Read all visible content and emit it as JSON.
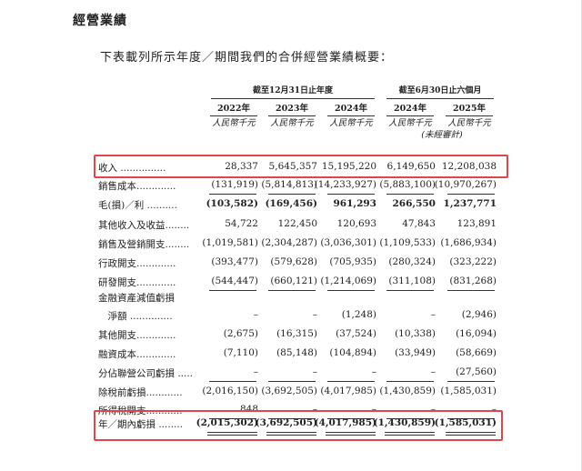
{
  "heading": "經營業績",
  "intro": "下表載列所示年度／期間我們的合併經營業績概要：",
  "header": {
    "group1": "截至12月31日止年度",
    "group2": "截至6月30日止六個月",
    "years": [
      "2022年",
      "2023年",
      "2024年",
      "2024年",
      "2025年"
    ],
    "unit": "人民幣千元",
    "unaudited": "(未經審計)"
  },
  "rows": [
    {
      "label": "收入 ...............",
      "values": [
        "28,337",
        "5,645,357",
        "15,195,220",
        "6,149,650",
        "12,208,038"
      ]
    },
    {
      "label": "銷售成本.............",
      "values": [
        "(131,919)",
        "(5,814,813)",
        "(14,233,927)",
        "(5,883,100)",
        "(10,970,267)"
      ]
    },
    {
      "label": "毛(損)／利 ..........",
      "values": [
        "(103,582)",
        "(169,456)",
        "961,293",
        "266,550",
        "1,237,771"
      ]
    },
    {
      "label": "其他收入及收益........",
      "values": [
        "54,722",
        "122,450",
        "120,693",
        "47,843",
        "123,891"
      ]
    },
    {
      "label": "銷售及營銷開支........",
      "values": [
        "(1,019,581)",
        "(2,304,287)",
        "(3,036,301)",
        "(1,109,533)",
        "(1,686,934)"
      ]
    },
    {
      "label": "行政開支.............",
      "values": [
        "(393,477)",
        "(579,628)",
        "(705,935)",
        "(280,324)",
        "(323,222)"
      ]
    },
    {
      "label": "研發開支.............",
      "values": [
        "(544,447)",
        "(660,121)",
        "(1,214,069)",
        "(311,108)",
        "(831,268)"
      ]
    },
    {
      "label": "金融資產減值虧損",
      "values": [
        "",
        "",
        "",
        "",
        ""
      ]
    },
    {
      "label": "　淨額 ..............",
      "values": [
        "–",
        "–",
        "(1,248)",
        "–",
        "(2,946)"
      ]
    },
    {
      "label": "其他開支.............",
      "values": [
        "(2,675)",
        "(16,315)",
        "(37,524)",
        "(10,338)",
        "(16,094)"
      ]
    },
    {
      "label": "融資成本.............",
      "values": [
        "(7,110)",
        "(85,148)",
        "(104,894)",
        "(33,949)",
        "(58,669)"
      ]
    },
    {
      "label": "分佔聯營公司虧損 .....",
      "values": [
        "–",
        "–",
        "–",
        "–",
        "(27,560)"
      ]
    },
    {
      "label": "除稅前虧損............",
      "values": [
        "(2,016,150)",
        "(3,692,505)",
        "(4,017,985)",
        "(1,430,859)",
        "(1,585,031)"
      ]
    },
    {
      "label": "所得稅開支............",
      "values": [
        "848",
        "–",
        "–",
        "–",
        "–"
      ]
    },
    {
      "label": "年／期內虧損 ........",
      "values": [
        "(2,015,302)",
        "(3,692,505)",
        "(4,017,985)",
        "(1,430,859)",
        "(1,585,031)"
      ]
    }
  ],
  "highlight_color": "#e0454b"
}
